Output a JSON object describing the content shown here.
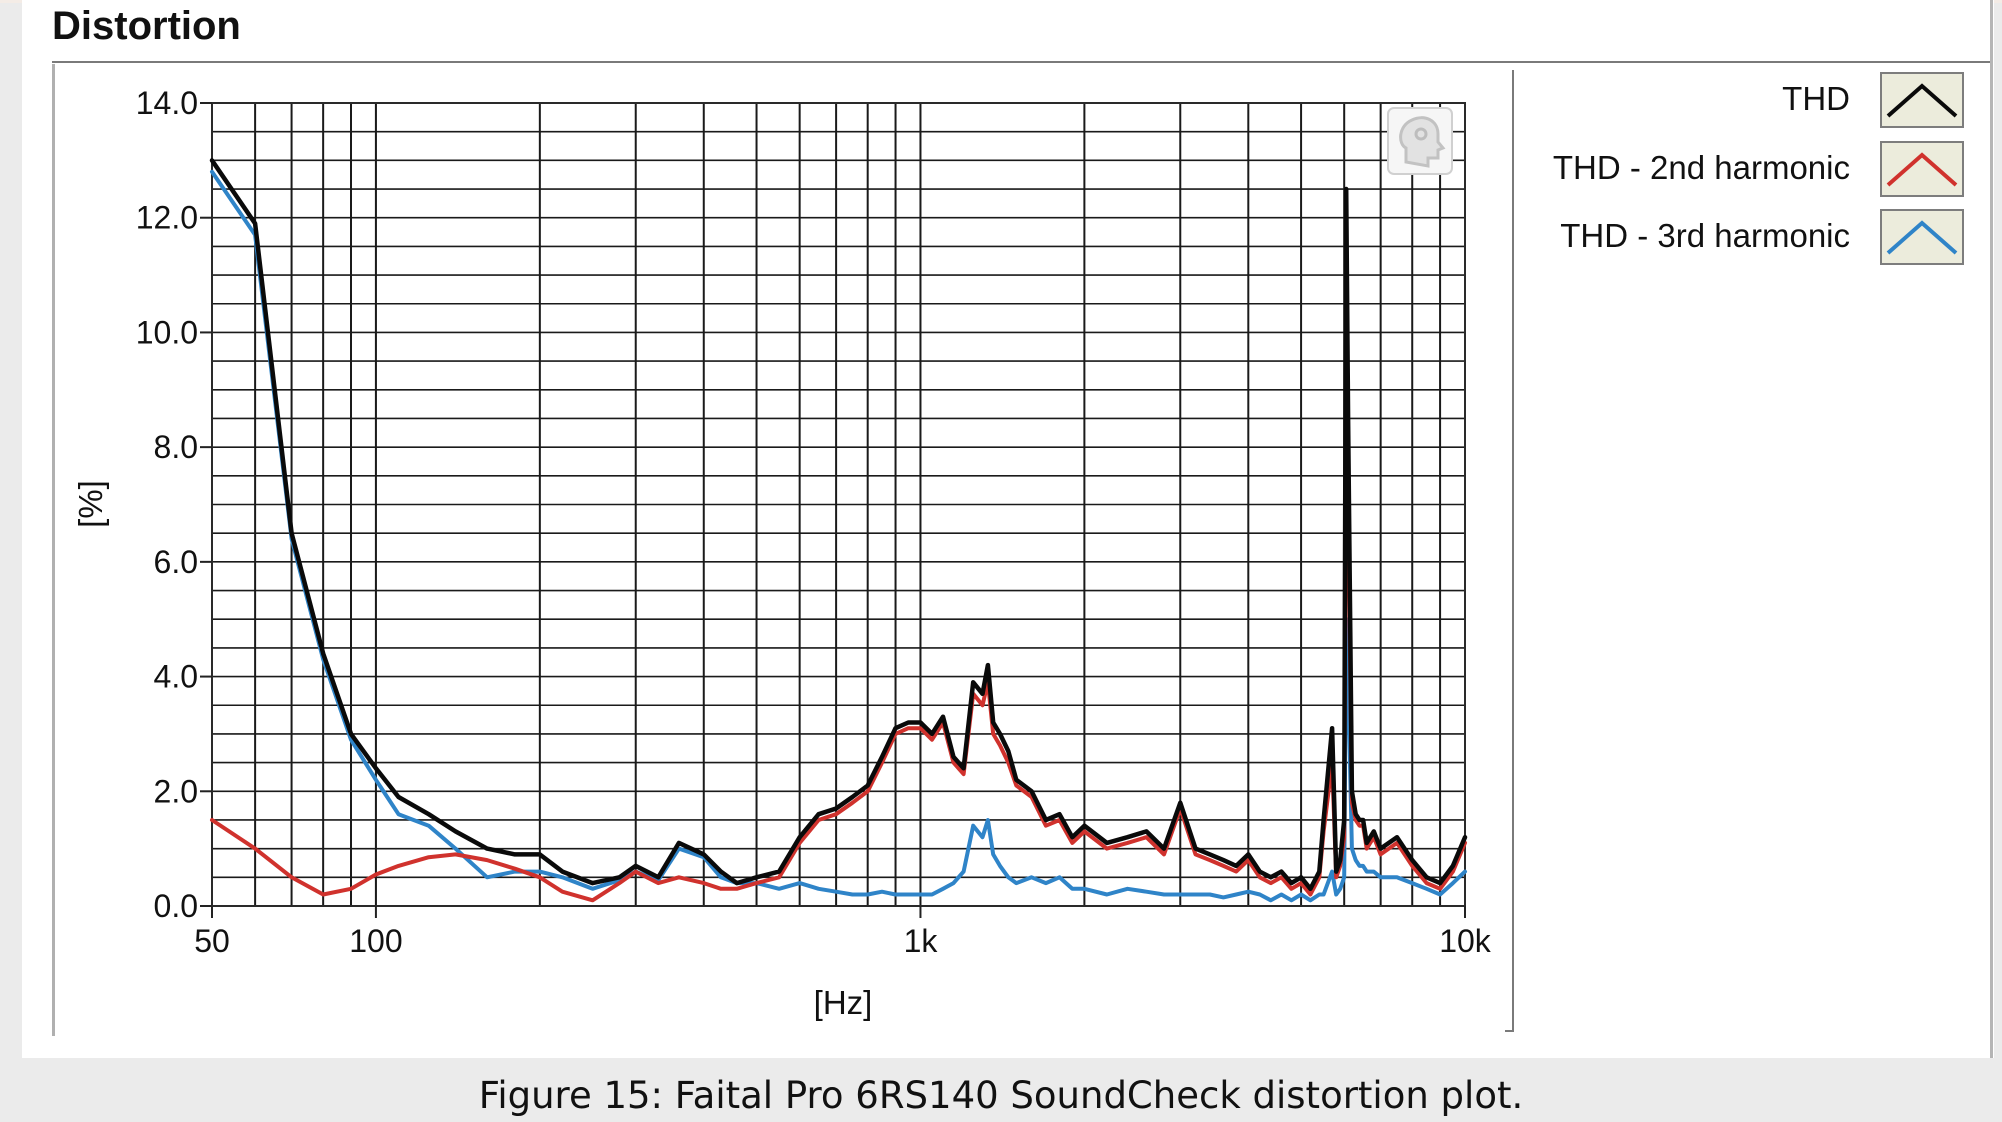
{
  "panel_title": "Distortion",
  "caption": "Figure 15: Faital Pro 6RS140 SoundCheck distortion plot.",
  "colors": {
    "thd": "#0a0a0a",
    "second": "#d0322d",
    "third": "#2f84c8",
    "grid": "#1a1a1a",
    "minor_grid": "#c8c8c8",
    "swatch_bg": "#ececdc"
  },
  "icon": "speaker-head-icon",
  "chart_data": {
    "type": "line",
    "title": "",
    "xlabel": "[Hz]",
    "ylabel": "[%]",
    "xscale": "log",
    "xlim": [
      50,
      10000
    ],
    "ylim": [
      0,
      14
    ],
    "grid": true,
    "legend_position": "right",
    "x_ticks": [
      {
        "value": 50,
        "label": "50"
      },
      {
        "value": 100,
        "label": "100"
      },
      {
        "value": 1000,
        "label": "1k"
      },
      {
        "value": 10000,
        "label": "10k"
      }
    ],
    "y_ticks": [
      {
        "value": 0,
        "label": "0.0"
      },
      {
        "value": 2,
        "label": "2.0"
      },
      {
        "value": 4,
        "label": "4.0"
      },
      {
        "value": 6,
        "label": "6.0"
      },
      {
        "value": 8,
        "label": "8.0"
      },
      {
        "value": 10,
        "label": "10.0"
      },
      {
        "value": 12,
        "label": "12.0"
      },
      {
        "value": 14,
        "label": "14.0"
      }
    ],
    "series": [
      {
        "name": "THD",
        "color": "#0a0a0a",
        "x": [
          50,
          60,
          70,
          80,
          90,
          100,
          110,
          125,
          140,
          160,
          180,
          200,
          220,
          250,
          280,
          300,
          330,
          360,
          400,
          430,
          460,
          500,
          550,
          600,
          650,
          700,
          750,
          800,
          850,
          900,
          950,
          1000,
          1050,
          1100,
          1150,
          1200,
          1250,
          1300,
          1330,
          1360,
          1400,
          1450,
          1500,
          1600,
          1700,
          1800,
          1900,
          2000,
          2200,
          2400,
          2600,
          2800,
          3000,
          3200,
          3400,
          3600,
          3800,
          4000,
          4200,
          4400,
          4600,
          4800,
          5000,
          5200,
          5400,
          5500,
          5700,
          5800,
          5900,
          6000,
          6050,
          6100,
          6200,
          6300,
          6400,
          6500,
          6600,
          6800,
          7000,
          7500,
          8000,
          8500,
          9000,
          9500,
          10000
        ],
        "y": [
          13.0,
          11.9,
          6.5,
          4.4,
          3.0,
          2.4,
          1.9,
          1.6,
          1.3,
          1.0,
          0.9,
          0.9,
          0.6,
          0.4,
          0.5,
          0.7,
          0.5,
          1.1,
          0.9,
          0.6,
          0.4,
          0.5,
          0.6,
          1.2,
          1.6,
          1.7,
          1.9,
          2.1,
          2.6,
          3.1,
          3.2,
          3.2,
          3.0,
          3.3,
          2.6,
          2.4,
          3.9,
          3.7,
          4.2,
          3.2,
          3.0,
          2.7,
          2.2,
          2.0,
          1.5,
          1.6,
          1.2,
          1.4,
          1.1,
          1.2,
          1.3,
          1.0,
          1.8,
          1.0,
          0.9,
          0.8,
          0.7,
          0.9,
          0.6,
          0.5,
          0.6,
          0.4,
          0.5,
          0.3,
          0.6,
          1.5,
          3.1,
          0.6,
          0.8,
          1.5,
          12.5,
          8.5,
          2.0,
          1.6,
          1.5,
          1.5,
          1.1,
          1.3,
          1.0,
          1.2,
          0.8,
          0.5,
          0.4,
          0.7,
          1.2
        ]
      },
      {
        "name": "THD - 2nd harmonic",
        "color": "#d0322d",
        "x": [
          50,
          60,
          70,
          80,
          90,
          100,
          110,
          125,
          140,
          160,
          180,
          200,
          220,
          250,
          280,
          300,
          330,
          360,
          400,
          430,
          460,
          500,
          550,
          600,
          650,
          700,
          750,
          800,
          850,
          900,
          950,
          1000,
          1050,
          1100,
          1150,
          1200,
          1250,
          1300,
          1330,
          1360,
          1400,
          1450,
          1500,
          1600,
          1700,
          1800,
          1900,
          2000,
          2200,
          2400,
          2600,
          2800,
          3000,
          3200,
          3400,
          3600,
          3800,
          4000,
          4200,
          4400,
          4600,
          4800,
          5000,
          5200,
          5400,
          5500,
          5700,
          5800,
          5900,
          6000,
          6050,
          6100,
          6200,
          6300,
          6400,
          6500,
          6600,
          6800,
          7000,
          7500,
          8000,
          8500,
          9000,
          9500,
          10000
        ],
        "y": [
          1.5,
          1.0,
          0.5,
          0.2,
          0.3,
          0.55,
          0.7,
          0.85,
          0.9,
          0.8,
          0.65,
          0.5,
          0.25,
          0.1,
          0.4,
          0.6,
          0.4,
          0.5,
          0.4,
          0.3,
          0.3,
          0.4,
          0.5,
          1.1,
          1.5,
          1.6,
          1.8,
          2.0,
          2.5,
          3.0,
          3.1,
          3.1,
          2.9,
          3.2,
          2.5,
          2.3,
          3.7,
          3.5,
          3.9,
          3.0,
          2.8,
          2.5,
          2.1,
          1.9,
          1.4,
          1.5,
          1.1,
          1.3,
          1.0,
          1.1,
          1.2,
          0.9,
          1.7,
          0.9,
          0.8,
          0.7,
          0.6,
          0.8,
          0.5,
          0.4,
          0.5,
          0.3,
          0.4,
          0.2,
          0.5,
          1.3,
          2.5,
          0.5,
          0.7,
          1.2,
          9.0,
          7.0,
          1.8,
          1.5,
          1.4,
          1.4,
          1.0,
          1.2,
          0.9,
          1.1,
          0.7,
          0.4,
          0.3,
          0.6,
          1.1
        ]
      },
      {
        "name": "THD - 3rd harmonic",
        "color": "#2f84c8",
        "x": [
          50,
          60,
          70,
          80,
          90,
          100,
          110,
          125,
          140,
          160,
          180,
          200,
          220,
          250,
          280,
          300,
          330,
          360,
          400,
          430,
          460,
          500,
          550,
          600,
          650,
          700,
          750,
          800,
          850,
          900,
          950,
          1000,
          1050,
          1100,
          1150,
          1200,
          1250,
          1300,
          1330,
          1360,
          1400,
          1450,
          1500,
          1600,
          1700,
          1800,
          1900,
          2000,
          2200,
          2400,
          2600,
          2800,
          3000,
          3200,
          3400,
          3600,
          3800,
          4000,
          4200,
          4400,
          4600,
          4800,
          5000,
          5200,
          5400,
          5500,
          5700,
          5800,
          5900,
          6000,
          6050,
          6100,
          6200,
          6300,
          6400,
          6500,
          6600,
          6800,
          7000,
          7500,
          8000,
          8500,
          9000,
          9500,
          10000
        ],
        "y": [
          12.8,
          11.7,
          6.4,
          4.3,
          2.9,
          2.2,
          1.6,
          1.4,
          1.0,
          0.5,
          0.6,
          0.6,
          0.5,
          0.3,
          0.45,
          0.6,
          0.45,
          1.0,
          0.85,
          0.5,
          0.4,
          0.4,
          0.3,
          0.4,
          0.3,
          0.25,
          0.2,
          0.2,
          0.25,
          0.2,
          0.2,
          0.2,
          0.2,
          0.3,
          0.4,
          0.6,
          1.4,
          1.2,
          1.5,
          0.9,
          0.7,
          0.5,
          0.4,
          0.5,
          0.4,
          0.5,
          0.3,
          0.3,
          0.2,
          0.3,
          0.25,
          0.2,
          0.2,
          0.2,
          0.2,
          0.15,
          0.2,
          0.25,
          0.2,
          0.1,
          0.2,
          0.1,
          0.2,
          0.1,
          0.2,
          0.2,
          0.6,
          0.2,
          0.3,
          0.5,
          5.0,
          4.0,
          1.0,
          0.8,
          0.7,
          0.7,
          0.6,
          0.6,
          0.5,
          0.5,
          0.4,
          0.3,
          0.2,
          0.4,
          0.6
        ]
      }
    ]
  }
}
